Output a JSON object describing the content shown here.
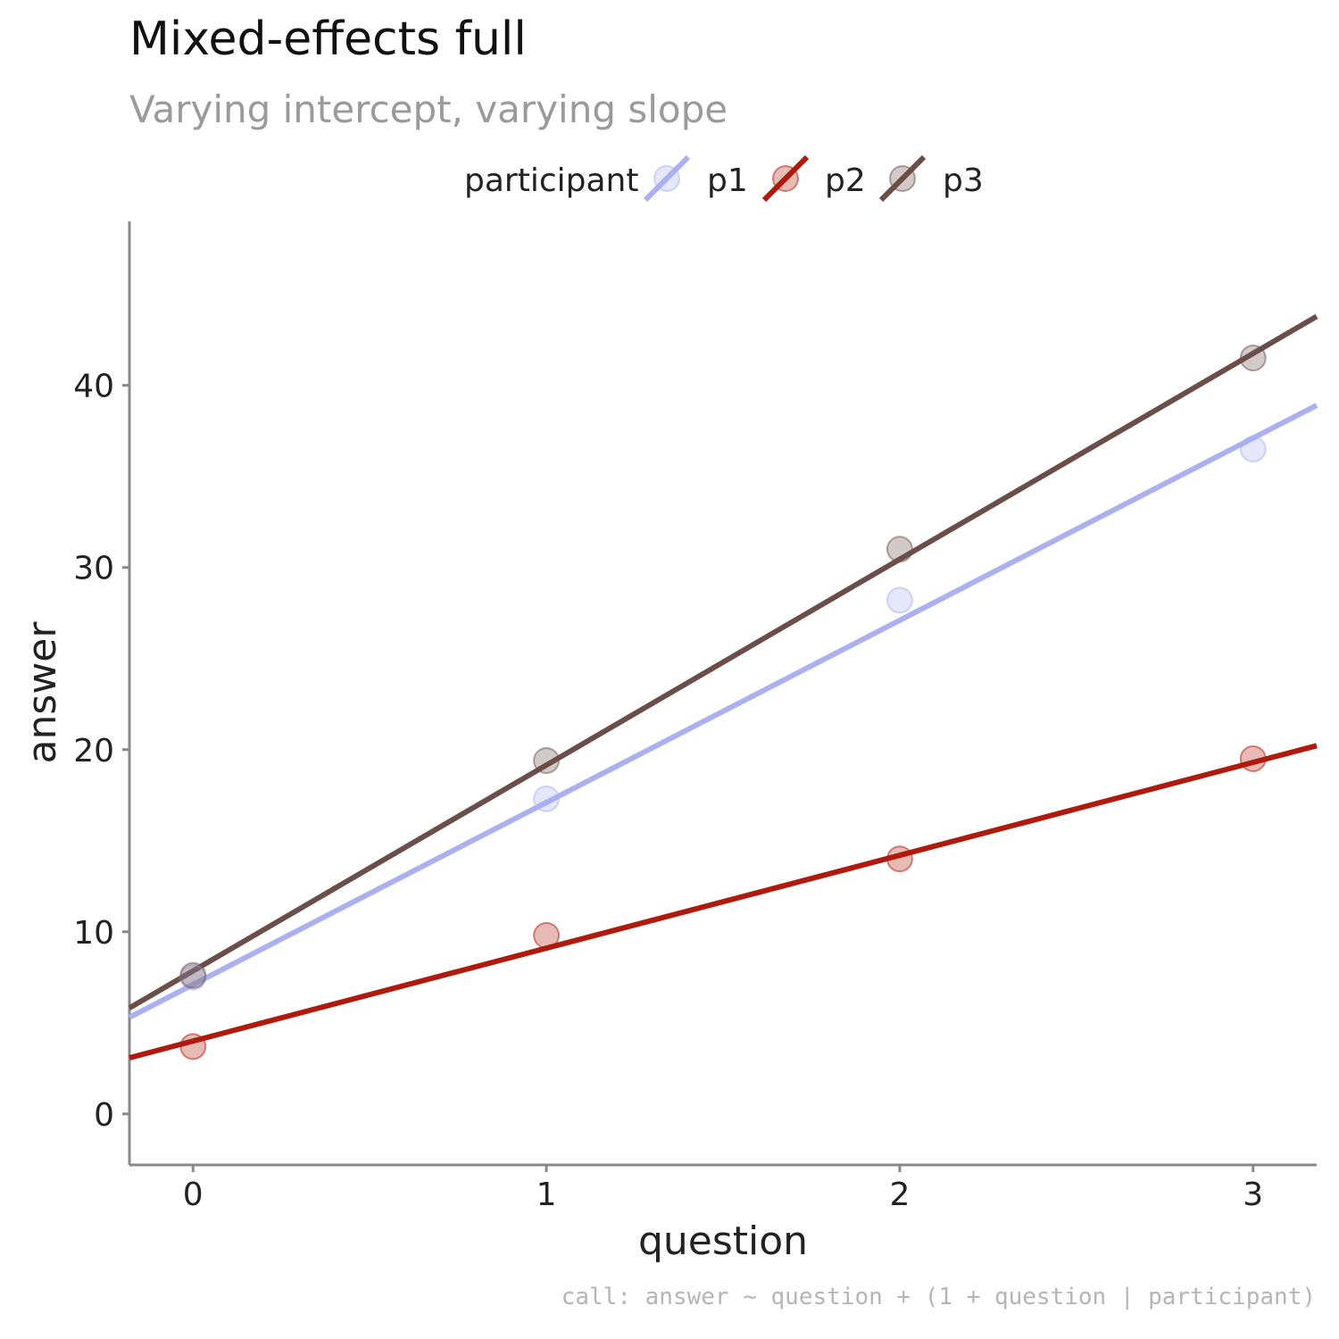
{
  "chart_data": {
    "type": "scatter",
    "title": "Mixed-effects full",
    "subtitle": "Varying intercept, varying slope",
    "caption": "call: answer ~ question + (1 + question | participant)",
    "xlabel": "question",
    "ylabel": "answer",
    "xlim": [
      -0.18,
      3.18
    ],
    "ylim": [
      -2.8,
      49
    ],
    "x_ticks": [
      0,
      1,
      2,
      3
    ],
    "y_ticks": [
      0,
      10,
      20,
      30,
      40
    ],
    "grid": false,
    "legend": {
      "title": "participant",
      "position": "top"
    },
    "series": [
      {
        "name": "p1",
        "color": "#aab0f0",
        "points": [
          {
            "x": 0,
            "y": 7.5
          },
          {
            "x": 1,
            "y": 17.3
          },
          {
            "x": 2,
            "y": 28.2
          },
          {
            "x": 3,
            "y": 36.5
          }
        ],
        "fit": {
          "intercept": 7.1,
          "slope": 10.0
        }
      },
      {
        "name": "p2",
        "color": "#b01a0c",
        "points": [
          {
            "x": 0,
            "y": 3.7
          },
          {
            "x": 1,
            "y": 9.8
          },
          {
            "x": 2,
            "y": 14.0
          },
          {
            "x": 3,
            "y": 19.5
          }
        ],
        "fit": {
          "intercept": 4.0,
          "slope": 5.1
        }
      },
      {
        "name": "p3",
        "color": "#6b4e4a",
        "points": [
          {
            "x": 0,
            "y": 7.6
          },
          {
            "x": 1,
            "y": 19.4
          },
          {
            "x": 2,
            "y": 31.0
          },
          {
            "x": 3,
            "y": 41.5
          }
        ],
        "fit": {
          "intercept": 7.85,
          "slope": 11.3
        }
      }
    ]
  }
}
